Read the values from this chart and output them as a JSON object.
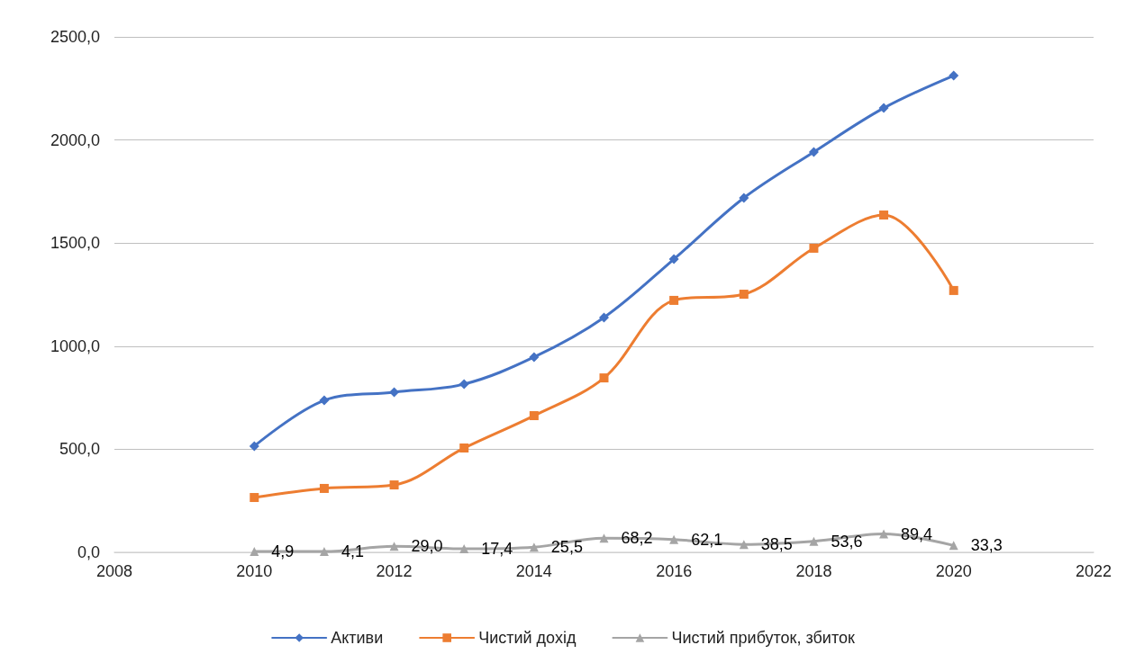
{
  "chart_data": {
    "type": "line",
    "x": [
      2010,
      2011,
      2012,
      2013,
      2014,
      2015,
      2016,
      2017,
      2018,
      2019,
      2020
    ],
    "series": [
      {
        "name": "Активи",
        "color": "#4472c4",
        "marker": "diamond",
        "values": [
          515,
          737,
          777,
          816,
          947,
          1139,
          1422,
          1719,
          1942,
          2155,
          2312
        ]
      },
      {
        "name": "Чистий дохід",
        "color": "#ed7d31",
        "marker": "square",
        "values": [
          266,
          310,
          327,
          506,
          663,
          846,
          1222,
          1252,
          1475,
          1636,
          1270
        ]
      },
      {
        "name": "Чистий прибуток, збиток",
        "color": "#a5a5a5",
        "marker": "triangle",
        "values": [
          4.9,
          4.1,
          29.0,
          17.4,
          25.5,
          68.2,
          62.1,
          38.5,
          53.6,
          89.4,
          33.3
        ],
        "value_labels": [
          "4,9",
          "4,1",
          "29,0",
          "17,4",
          "25,5",
          "68,2",
          "62,1",
          "38,5",
          "53,6",
          "89,4",
          "33,3"
        ]
      }
    ],
    "xlim": [
      2008,
      2022
    ],
    "xticks": [
      2008,
      2010,
      2012,
      2014,
      2016,
      2018,
      2020,
      2022
    ],
    "ylim": [
      0,
      2500
    ],
    "yticks": [
      {
        "value": 0,
        "label": "0,0"
      },
      {
        "value": 500,
        "label": "500,0"
      },
      {
        "value": 1000,
        "label": "1000,0"
      },
      {
        "value": 1500,
        "label": "1500,0"
      },
      {
        "value": 2000,
        "label": "2000,0"
      },
      {
        "value": 2500,
        "label": "2500,0"
      }
    ],
    "grid": "y",
    "legend": "bottom",
    "line_style": "solid"
  }
}
